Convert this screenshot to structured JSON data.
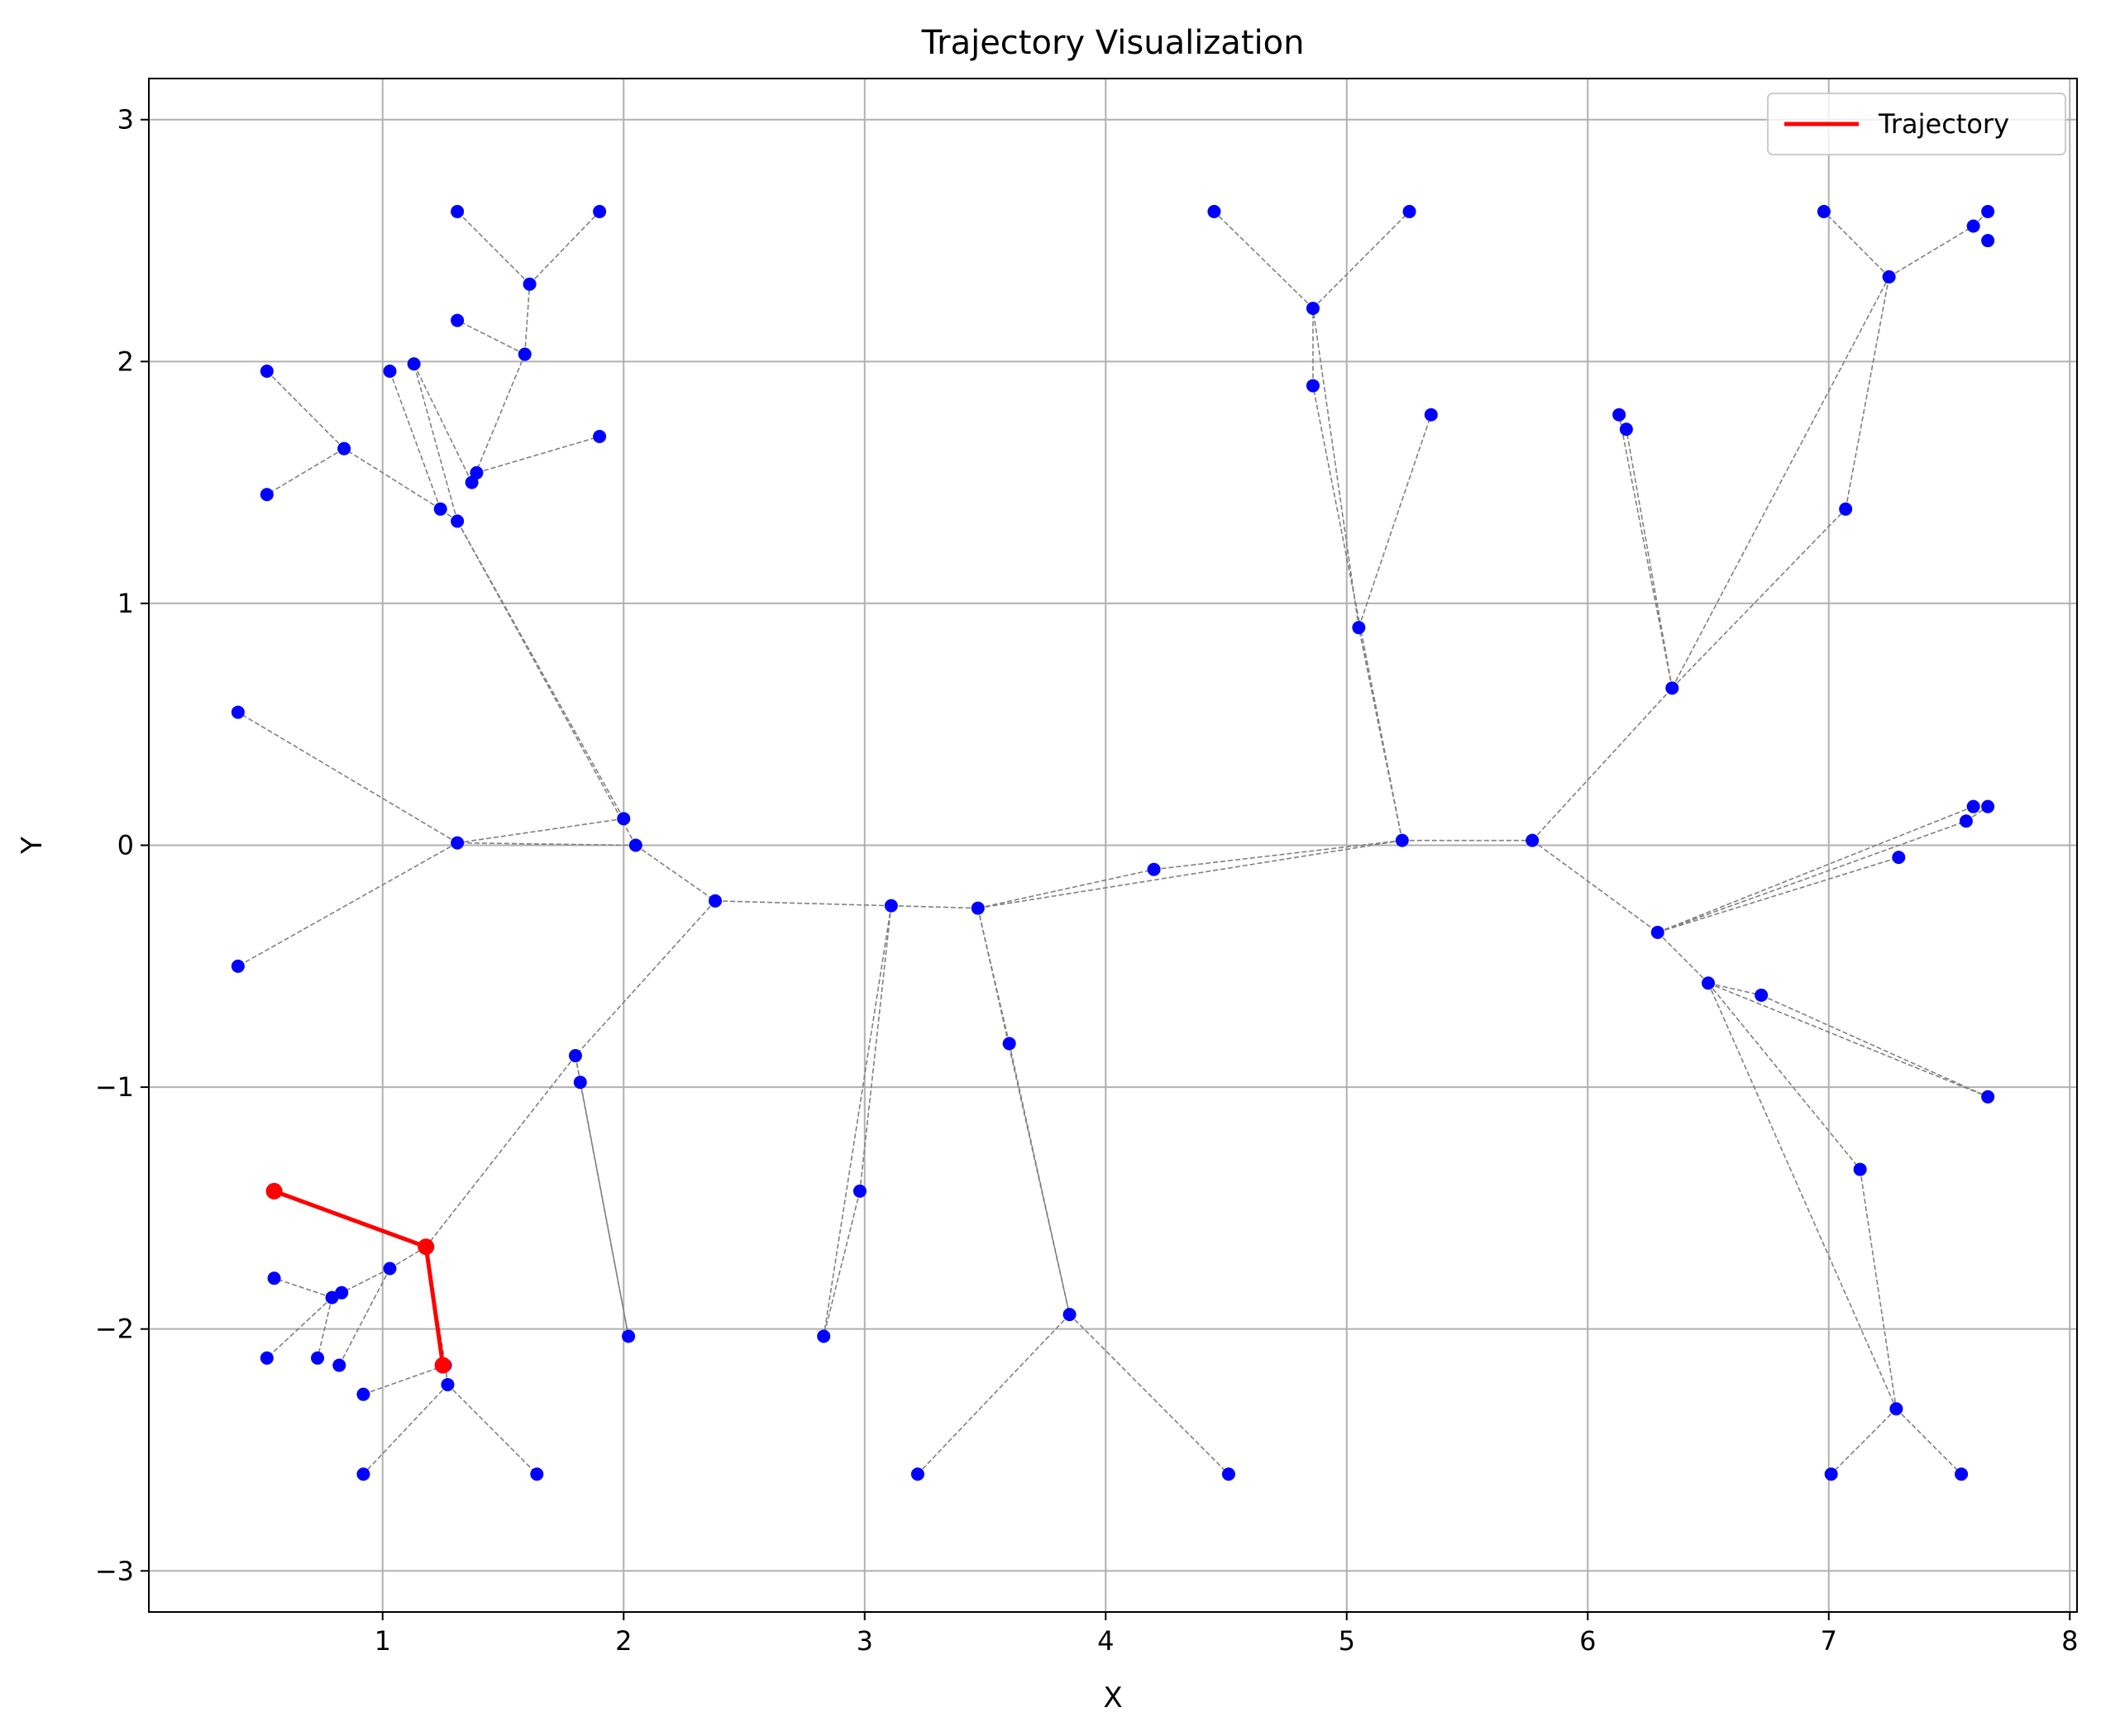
{
  "chart_data": {
    "type": "scatter",
    "title": "Trajectory Visualization",
    "xlabel": "X",
    "ylabel": "Y",
    "xlim": [
      0.03,
      8.03
    ],
    "ylim": [
      -3.17,
      3.17
    ],
    "xticks": [
      1,
      2,
      3,
      4,
      5,
      6,
      7,
      8
    ],
    "yticks": [
      -3,
      -2,
      -1,
      0,
      1,
      2,
      3
    ],
    "xtick_labels": [
      "1",
      "2",
      "3",
      "4",
      "5",
      "6",
      "7",
      "8"
    ],
    "ytick_labels": [
      "−3",
      "−2",
      "−1",
      "0",
      "1",
      "2",
      "3"
    ],
    "grid": true,
    "legend_position": "top-right",
    "legend": [
      {
        "label": "Trajectory",
        "color": "#ff0000"
      }
    ],
    "colors": {
      "nodes": "#0000ff",
      "edges": "#808080",
      "trajectory": "#ff0000"
    },
    "nodes": [
      [
        2.05,
        0.0
      ],
      [
        2.38,
        -0.23
      ],
      [
        3.11,
        -0.25
      ],
      [
        3.47,
        -0.26
      ],
      [
        4.2,
        -0.1
      ],
      [
        5.23,
        0.02
      ],
      [
        5.77,
        0.02
      ],
      [
        1.31,
        0.01
      ],
      [
        0.4,
        0.55
      ],
      [
        0.4,
        -0.5
      ],
      [
        2.0,
        0.11
      ],
      [
        1.31,
        1.34
      ],
      [
        1.24,
        1.39
      ],
      [
        0.84,
        1.64
      ],
      [
        0.52,
        1.96
      ],
      [
        0.52,
        1.45
      ],
      [
        1.03,
        1.96
      ],
      [
        1.13,
        1.99
      ],
      [
        1.37,
        1.5
      ],
      [
        1.39,
        1.54
      ],
      [
        1.9,
        1.69
      ],
      [
        1.59,
        2.03
      ],
      [
        1.31,
        2.17
      ],
      [
        1.61,
        2.32
      ],
      [
        1.31,
        2.62
      ],
      [
        1.9,
        2.62
      ],
      [
        1.8,
        -0.87
      ],
      [
        1.82,
        -0.98
      ],
      [
        2.02,
        -2.03
      ],
      [
        1.18,
        -1.66
      ],
      [
        1.03,
        -1.75
      ],
      [
        0.83,
        -1.85
      ],
      [
        0.79,
        -1.87
      ],
      [
        0.55,
        -1.79
      ],
      [
        0.52,
        -2.12
      ],
      [
        0.73,
        -2.12
      ],
      [
        0.82,
        -2.15
      ],
      [
        1.26,
        -2.15
      ],
      [
        1.27,
        -2.23
      ],
      [
        0.92,
        -2.27
      ],
      [
        0.92,
        -2.6
      ],
      [
        1.64,
        -2.6
      ],
      [
        2.98,
        -1.43
      ],
      [
        2.83,
        -2.03
      ],
      [
        3.6,
        -0.82
      ],
      [
        3.85,
        -1.94
      ],
      [
        3.22,
        -2.6
      ],
      [
        4.51,
        -2.6
      ],
      [
        5.05,
        0.9
      ],
      [
        4.86,
        1.9
      ],
      [
        4.86,
        2.22
      ],
      [
        4.45,
        2.62
      ],
      [
        5.26,
        2.62
      ],
      [
        5.35,
        1.78
      ],
      [
        6.35,
        0.65
      ],
      [
        6.13,
        1.78
      ],
      [
        6.16,
        1.72
      ],
      [
        7.07,
        1.39
      ],
      [
        7.25,
        2.35
      ],
      [
        6.98,
        2.62
      ],
      [
        7.6,
        2.56
      ],
      [
        7.66,
        2.62
      ],
      [
        7.66,
        2.5
      ],
      [
        6.29,
        -0.36
      ],
      [
        7.29,
        -0.05
      ],
      [
        7.57,
        0.1
      ],
      [
        7.6,
        0.16
      ],
      [
        7.66,
        0.16
      ],
      [
        6.5,
        -0.57
      ],
      [
        6.72,
        -0.62
      ],
      [
        7.66,
        -1.04
      ],
      [
        7.13,
        -1.34
      ],
      [
        7.28,
        -2.33
      ],
      [
        7.01,
        -2.6
      ],
      [
        7.55,
        -2.6
      ]
    ],
    "edges": [
      [
        2.05,
        0.0,
        2.38,
        -0.23
      ],
      [
        2.38,
        -0.23,
        3.11,
        -0.25
      ],
      [
        3.11,
        -0.25,
        3.47,
        -0.26
      ],
      [
        3.47,
        -0.26,
        4.2,
        -0.1
      ],
      [
        4.2,
        -0.1,
        5.23,
        0.02
      ],
      [
        3.47,
        -0.26,
        5.23,
        0.02
      ],
      [
        5.23,
        0.02,
        5.77,
        0.02
      ],
      [
        2.05,
        0.0,
        1.31,
        0.01
      ],
      [
        2.0,
        0.11,
        1.31,
        0.01
      ],
      [
        1.31,
        0.01,
        0.4,
        0.55
      ],
      [
        1.31,
        0.01,
        0.4,
        -0.5
      ],
      [
        2.05,
        0.0,
        1.31,
        1.34
      ],
      [
        2.0,
        0.11,
        1.31,
        1.34
      ],
      [
        1.31,
        1.34,
        1.24,
        1.39
      ],
      [
        1.24,
        1.39,
        0.84,
        1.64
      ],
      [
        0.84,
        1.64,
        0.52,
        1.96
      ],
      [
        0.84,
        1.64,
        0.52,
        1.45
      ],
      [
        1.24,
        1.39,
        1.03,
        1.96
      ],
      [
        1.31,
        1.34,
        1.13,
        1.99
      ],
      [
        1.37,
        1.5,
        1.13,
        1.99
      ],
      [
        1.37,
        1.5,
        1.59,
        2.03
      ],
      [
        1.39,
        1.54,
        1.9,
        1.69
      ],
      [
        1.59,
        2.03,
        1.31,
        2.17
      ],
      [
        1.59,
        2.03,
        1.61,
        2.32
      ],
      [
        1.61,
        2.32,
        1.31,
        2.62
      ],
      [
        1.61,
        2.32,
        1.9,
        2.62
      ],
      [
        2.38,
        -0.23,
        1.8,
        -0.87
      ],
      [
        1.8,
        -0.87,
        1.82,
        -0.98
      ],
      [
        1.8,
        -0.87,
        2.02,
        -2.03
      ],
      [
        1.82,
        -0.98,
        2.02,
        -2.03
      ],
      [
        1.8,
        -0.87,
        1.18,
        -1.66
      ],
      [
        1.18,
        -1.66,
        1.03,
        -1.75
      ],
      [
        1.03,
        -1.75,
        0.83,
        -1.85
      ],
      [
        0.83,
        -1.85,
        0.79,
        -1.87
      ],
      [
        0.79,
        -1.87,
        0.55,
        -1.79
      ],
      [
        0.79,
        -1.87,
        0.52,
        -2.12
      ],
      [
        0.79,
        -1.87,
        0.73,
        -2.12
      ],
      [
        1.03,
        -1.75,
        0.82,
        -2.15
      ],
      [
        1.18,
        -1.66,
        1.26,
        -2.15
      ],
      [
        1.26,
        -2.15,
        0.92,
        -2.27
      ],
      [
        1.26,
        -2.15,
        1.27,
        -2.23
      ],
      [
        1.27,
        -2.23,
        0.92,
        -2.6
      ],
      [
        1.27,
        -2.23,
        1.64,
        -2.6
      ],
      [
        3.11,
        -0.25,
        2.98,
        -1.43
      ],
      [
        3.11,
        -0.25,
        2.83,
        -2.03
      ],
      [
        2.98,
        -1.43,
        2.83,
        -2.03
      ],
      [
        3.47,
        -0.26,
        3.6,
        -0.82
      ],
      [
        3.47,
        -0.26,
        3.85,
        -1.94
      ],
      [
        3.6,
        -0.82,
        3.85,
        -1.94
      ],
      [
        3.85,
        -1.94,
        3.22,
        -2.6
      ],
      [
        3.85,
        -1.94,
        4.51,
        -2.6
      ],
      [
        5.23,
        0.02,
        5.05,
        0.9
      ],
      [
        5.23,
        0.02,
        4.86,
        1.9
      ],
      [
        5.05,
        0.9,
        4.86,
        2.22
      ],
      [
        4.86,
        1.9,
        4.86,
        2.22
      ],
      [
        4.86,
        2.22,
        4.45,
        2.62
      ],
      [
        4.86,
        2.22,
        5.26,
        2.62
      ],
      [
        5.05,
        0.9,
        5.35,
        1.78
      ],
      [
        5.77,
        0.02,
        6.35,
        0.65
      ],
      [
        6.35,
        0.65,
        6.13,
        1.78
      ],
      [
        6.35,
        0.65,
        6.16,
        1.72
      ],
      [
        6.35,
        0.65,
        7.07,
        1.39
      ],
      [
        6.35,
        0.65,
        7.25,
        2.35
      ],
      [
        7.07,
        1.39,
        7.25,
        2.35
      ],
      [
        7.25,
        2.35,
        6.98,
        2.62
      ],
      [
        7.25,
        2.35,
        7.6,
        2.56
      ],
      [
        7.6,
        2.56,
        7.66,
        2.62
      ],
      [
        5.77,
        0.02,
        6.29,
        -0.36
      ],
      [
        6.29,
        -0.36,
        7.29,
        -0.05
      ],
      [
        6.29,
        -0.36,
        7.57,
        0.1
      ],
      [
        6.29,
        -0.36,
        7.6,
        0.16
      ],
      [
        7.57,
        0.1,
        7.66,
        0.16
      ],
      [
        6.29,
        -0.36,
        6.5,
        -0.57
      ],
      [
        6.5,
        -0.57,
        6.72,
        -0.62
      ],
      [
        6.5,
        -0.57,
        7.66,
        -1.04
      ],
      [
        6.72,
        -0.62,
        7.66,
        -1.04
      ],
      [
        6.5,
        -0.57,
        7.13,
        -1.34
      ],
      [
        6.5,
        -0.57,
        7.28,
        -2.33
      ],
      [
        7.13,
        -1.34,
        7.28,
        -2.33
      ],
      [
        7.28,
        -2.33,
        7.01,
        -2.6
      ],
      [
        7.28,
        -2.33,
        7.55,
        -2.6
      ]
    ],
    "series": [
      {
        "name": "Trajectory",
        "points": [
          [
            0.55,
            -1.43
          ],
          [
            1.18,
            -1.66
          ],
          [
            1.25,
            -2.15
          ]
        ]
      }
    ]
  }
}
